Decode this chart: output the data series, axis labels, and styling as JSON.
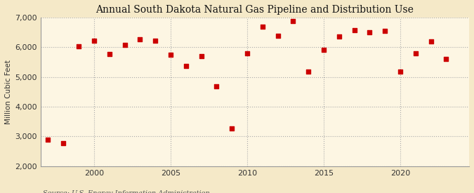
{
  "title": "Annual South Dakota Natural Gas Pipeline and Distribution Use",
  "ylabel": "Million Cubic Feet",
  "source": "Source: U.S. Energy Information Administration",
  "background_color": "#f5e9c8",
  "plot_background_color": "#fdf6e3",
  "marker_color": "#cc0000",
  "marker_size": 5,
  "xlim": [
    1996.5,
    2024.5
  ],
  "ylim": [
    2000,
    7000
  ],
  "yticks": [
    2000,
    3000,
    4000,
    5000,
    6000,
    7000
  ],
  "xticks": [
    2000,
    2005,
    2010,
    2015,
    2020
  ],
  "years": [
    1997,
    1998,
    1999,
    2000,
    2001,
    2002,
    2003,
    2004,
    2005,
    2006,
    2007,
    2008,
    2009,
    2010,
    2011,
    2012,
    2013,
    2014,
    2015,
    2016,
    2017,
    2018,
    2019,
    2020,
    2021,
    2022,
    2023
  ],
  "values": [
    2900,
    2780,
    6020,
    6230,
    5780,
    6080,
    6270,
    6210,
    5750,
    5370,
    5690,
    4680,
    3270,
    5800,
    6680,
    6390,
    6880,
    5170,
    5900,
    6370,
    6580,
    6490,
    6540,
    5170,
    5790,
    6200,
    5600
  ]
}
